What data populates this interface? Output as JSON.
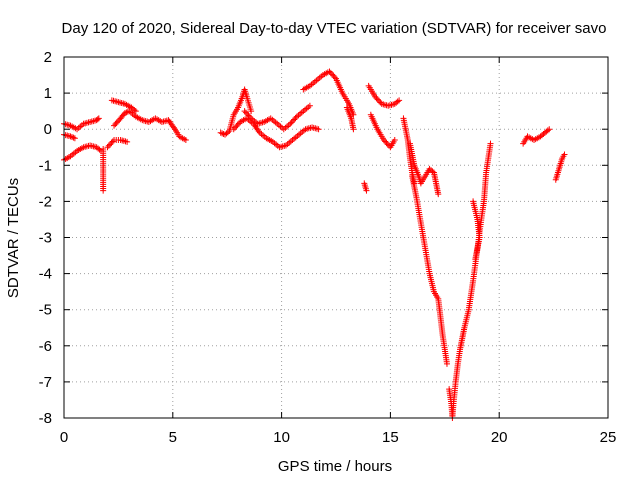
{
  "chart_data": {
    "type": "scatter",
    "title": "Day 120 of 2020, Sidereal Day-to-day VTEC variation (SDTVAR) for receiver savo",
    "xlabel": "GPS time / hours",
    "ylabel": "SDTVAR / TECUs",
    "xlim": [
      0,
      25
    ],
    "ylim": [
      -8,
      2
    ],
    "xticks": [
      0,
      5,
      10,
      15,
      20,
      25
    ],
    "yticks": [
      2,
      1,
      0,
      -1,
      -2,
      -3,
      -4,
      -5,
      -6,
      -7,
      -8
    ],
    "grid": true,
    "marker": "+",
    "series": [
      {
        "name": "SDTVAR",
        "color": "#ff0000",
        "segments": [
          [
            [
              0.0,
              0.15
            ],
            [
              0.3,
              0.1
            ],
            [
              0.6,
              0.0
            ],
            [
              0.9,
              0.15
            ],
            [
              1.2,
              0.2
            ],
            [
              1.5,
              0.25
            ],
            [
              1.6,
              0.3
            ]
          ],
          [
            [
              0.0,
              -0.15
            ],
            [
              0.3,
              -0.2
            ],
            [
              0.5,
              -0.25
            ]
          ],
          [
            [
              0.0,
              -0.85
            ],
            [
              0.3,
              -0.75
            ],
            [
              0.6,
              -0.6
            ],
            [
              0.9,
              -0.5
            ],
            [
              1.2,
              -0.45
            ],
            [
              1.5,
              -0.5
            ],
            [
              1.7,
              -0.6
            ]
          ],
          [
            [
              1.8,
              -0.55
            ],
            [
              1.8,
              -0.9
            ],
            [
              1.8,
              -1.3
            ],
            [
              1.8,
              -1.7
            ]
          ],
          [
            [
              2.2,
              0.8
            ],
            [
              2.5,
              0.75
            ],
            [
              2.8,
              0.7
            ],
            [
              3.1,
              0.6
            ],
            [
              3.3,
              0.5
            ]
          ],
          [
            [
              2.0,
              -0.5
            ],
            [
              2.3,
              -0.3
            ],
            [
              2.6,
              -0.3
            ],
            [
              2.9,
              -0.35
            ]
          ],
          [
            [
              2.3,
              0.1
            ],
            [
              2.6,
              0.3
            ],
            [
              2.8,
              0.45
            ],
            [
              3.0,
              0.5
            ],
            [
              3.3,
              0.35
            ],
            [
              3.6,
              0.25
            ],
            [
              3.9,
              0.2
            ],
            [
              4.2,
              0.3
            ],
            [
              4.5,
              0.2
            ],
            [
              4.8,
              0.25
            ],
            [
              5.1,
              0.0
            ],
            [
              5.3,
              -0.2
            ],
            [
              5.6,
              -0.3
            ]
          ],
          [
            [
              7.2,
              -0.1
            ],
            [
              7.4,
              -0.15
            ],
            [
              7.6,
              -0.05
            ],
            [
              7.8,
              0.4
            ],
            [
              8.0,
              0.6
            ],
            [
              8.2,
              0.9
            ],
            [
              8.3,
              1.1
            ],
            [
              8.4,
              0.9
            ],
            [
              8.6,
              0.5
            ]
          ],
          [
            [
              7.8,
              0.0
            ],
            [
              8.1,
              0.2
            ],
            [
              8.4,
              0.3
            ],
            [
              8.7,
              0.15
            ],
            [
              9.0,
              -0.1
            ],
            [
              9.3,
              -0.25
            ],
            [
              9.6,
              -0.35
            ],
            [
              9.9,
              -0.5
            ],
            [
              10.2,
              -0.45
            ],
            [
              10.5,
              -0.3
            ],
            [
              10.8,
              -0.15
            ],
            [
              11.1,
              0.0
            ],
            [
              11.4,
              0.05
            ],
            [
              11.7,
              0.0
            ]
          ],
          [
            [
              8.3,
              0.5
            ],
            [
              8.6,
              0.3
            ],
            [
              8.9,
              0.15
            ],
            [
              9.2,
              0.2
            ],
            [
              9.5,
              0.3
            ],
            [
              9.8,
              0.15
            ],
            [
              10.1,
              0.0
            ],
            [
              10.4,
              0.15
            ],
            [
              10.7,
              0.35
            ],
            [
              11.0,
              0.5
            ],
            [
              11.3,
              0.65
            ]
          ],
          [
            [
              11.0,
              1.1
            ],
            [
              11.3,
              1.2
            ],
            [
              11.6,
              1.35
            ],
            [
              11.9,
              1.5
            ],
            [
              12.2,
              1.6
            ],
            [
              12.5,
              1.4
            ],
            [
              12.8,
              1.0
            ],
            [
              13.1,
              0.7
            ],
            [
              13.3,
              0.4
            ]
          ],
          [
            [
              13.0,
              0.6
            ],
            [
              13.2,
              0.3
            ],
            [
              13.3,
              0.0
            ]
          ],
          [
            [
              13.8,
              -1.5
            ],
            [
              13.9,
              -1.7
            ]
          ],
          [
            [
              14.0,
              1.2
            ],
            [
              14.3,
              0.9
            ],
            [
              14.6,
              0.7
            ],
            [
              14.9,
              0.65
            ],
            [
              15.2,
              0.7
            ],
            [
              15.4,
              0.8
            ]
          ],
          [
            [
              14.1,
              0.4
            ],
            [
              14.4,
              0.0
            ],
            [
              14.7,
              -0.3
            ],
            [
              15.0,
              -0.5
            ],
            [
              15.2,
              -0.3
            ]
          ],
          [
            [
              15.6,
              0.3
            ],
            [
              15.8,
              -0.3
            ],
            [
              15.9,
              -0.8
            ],
            [
              16.0,
              -1.2
            ],
            [
              16.1,
              -1.5
            ]
          ],
          [
            [
              15.9,
              -0.4
            ],
            [
              16.1,
              -1.0
            ],
            [
              16.3,
              -1.3
            ],
            [
              16.4,
              -1.5
            ],
            [
              16.6,
              -1.3
            ],
            [
              16.8,
              -1.1
            ],
            [
              17.0,
              -1.2
            ],
            [
              17.1,
              -1.5
            ],
            [
              17.2,
              -1.8
            ]
          ],
          [
            [
              16.0,
              -1.3
            ],
            [
              16.2,
              -1.9
            ],
            [
              16.4,
              -2.6
            ],
            [
              16.6,
              -3.3
            ],
            [
              16.8,
              -4.0
            ],
            [
              17.0,
              -4.5
            ],
            [
              17.2,
              -4.7
            ],
            [
              17.3,
              -5.2
            ],
            [
              17.4,
              -5.7
            ],
            [
              17.5,
              -6.1
            ],
            [
              17.6,
              -6.5
            ]
          ],
          [
            [
              17.7,
              -7.2
            ],
            [
              17.8,
              -7.6
            ],
            [
              17.85,
              -8.0
            ],
            [
              17.9,
              -7.6
            ],
            [
              18.0,
              -7.0
            ],
            [
              18.1,
              -6.5
            ],
            [
              18.2,
              -6.1
            ],
            [
              18.3,
              -5.8
            ],
            [
              18.4,
              -5.5
            ],
            [
              18.6,
              -5.0
            ],
            [
              18.8,
              -4.2
            ],
            [
              19.0,
              -3.3
            ],
            [
              19.2,
              -2.4
            ],
            [
              19.3,
              -2.0
            ],
            [
              19.4,
              -1.2
            ],
            [
              19.6,
              -0.4
            ]
          ],
          [
            [
              18.8,
              -2.0
            ],
            [
              19.0,
              -2.5
            ],
            [
              19.1,
              -3.0
            ],
            [
              18.9,
              -3.6
            ]
          ],
          [
            [
              21.1,
              -0.4
            ],
            [
              21.3,
              -0.2
            ],
            [
              21.6,
              -0.3
            ],
            [
              21.9,
              -0.2
            ],
            [
              22.1,
              -0.1
            ],
            [
              22.3,
              0.0
            ]
          ],
          [
            [
              22.6,
              -1.4
            ],
            [
              22.7,
              -1.2
            ],
            [
              22.8,
              -1.0
            ],
            [
              22.9,
              -0.8
            ],
            [
              23.0,
              -0.7
            ]
          ]
        ]
      }
    ]
  }
}
